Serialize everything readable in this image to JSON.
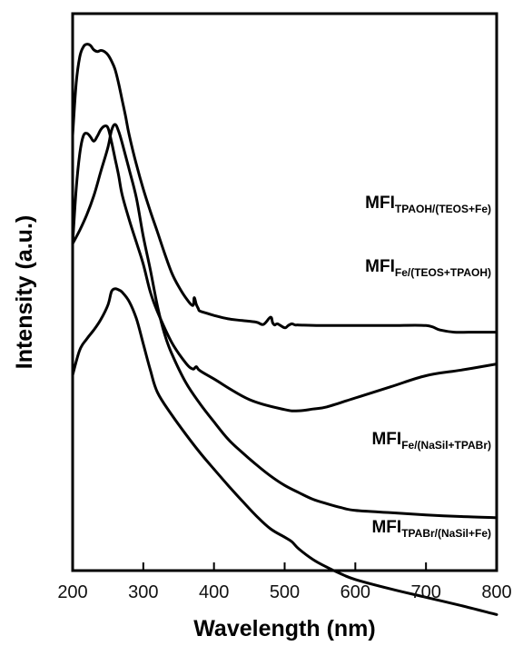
{
  "chart_data": {
    "type": "line",
    "xlabel": "Wavelength (nm)",
    "ylabel": "Intensity (a.u.)",
    "xlim": [
      200,
      800
    ],
    "xticks": [
      200,
      300,
      400,
      500,
      600,
      700,
      800
    ],
    "yticks_shown": false,
    "grid": false,
    "legend": "inline labels at right",
    "line_color": "#000000",
    "series": [
      {
        "name": "MFI",
        "subscript": "TPAOH/(TEOS+Fe)",
        "x": [
          200,
          205,
          210,
          215,
          220,
          225,
          230,
          235,
          240,
          245,
          250,
          255,
          260,
          265,
          270,
          275,
          280,
          290,
          300,
          310,
          320,
          330,
          340,
          350,
          360,
          370,
          372,
          375,
          378,
          380,
          390,
          400,
          420,
          440,
          460,
          470,
          480,
          483,
          486,
          490,
          500,
          505,
          510,
          515,
          520,
          550,
          600,
          650,
          700,
          720,
          740,
          760,
          780,
          800
        ],
        "y": [
          0.781,
          0.875,
          0.922,
          0.94,
          0.945,
          0.943,
          0.935,
          0.932,
          0.934,
          0.932,
          0.926,
          0.915,
          0.9,
          0.875,
          0.845,
          0.815,
          0.782,
          0.73,
          0.685,
          0.645,
          0.608,
          0.57,
          0.535,
          0.51,
          0.49,
          0.476,
          0.49,
          0.478,
          0.47,
          0.466,
          0.462,
          0.458,
          0.452,
          0.449,
          0.446,
          0.442,
          0.455,
          0.445,
          0.441,
          0.443,
          0.436,
          0.44,
          0.443,
          0.441,
          0.441,
          0.44,
          0.44,
          0.44,
          0.44,
          0.432,
          0.428,
          0.428,
          0.428,
          0.428
        ]
      },
      {
        "name": "MFI",
        "subscript": "Fe/(TEOS+TPAOH)",
        "x": [
          200,
          205,
          210,
          215,
          220,
          225,
          230,
          235,
          240,
          245,
          250,
          255,
          260,
          265,
          270,
          280,
          290,
          300,
          310,
          320,
          340,
          360,
          370,
          375,
          380,
          400,
          450,
          500,
          520,
          540,
          560,
          600,
          650,
          700,
          750,
          800
        ],
        "y": [
          0.587,
          0.685,
          0.748,
          0.78,
          0.785,
          0.779,
          0.771,
          0.78,
          0.792,
          0.798,
          0.795,
          0.77,
          0.74,
          0.71,
          0.675,
          0.63,
          0.59,
          0.55,
          0.5,
          0.465,
          0.41,
          0.373,
          0.362,
          0.366,
          0.359,
          0.344,
          0.307,
          0.289,
          0.287,
          0.29,
          0.294,
          0.31,
          0.33,
          0.35,
          0.36,
          0.371
        ]
      },
      {
        "name": "MFI",
        "subscript": "Fe/(NaSil+TPABr)",
        "x": [
          200,
          210,
          220,
          230,
          240,
          250,
          255,
          260,
          265,
          270,
          280,
          290,
          300,
          310,
          320,
          330,
          340,
          360,
          380,
          400,
          420,
          440,
          460,
          480,
          500,
          520,
          540,
          560,
          580,
          600,
          650,
          700,
          750,
          800
        ],
        "y": [
          0.587,
          0.611,
          0.639,
          0.673,
          0.717,
          0.76,
          0.79,
          0.801,
          0.789,
          0.768,
          0.72,
          0.67,
          0.6,
          0.54,
          0.475,
          0.425,
          0.39,
          0.338,
          0.3,
          0.267,
          0.236,
          0.212,
          0.19,
          0.17,
          0.153,
          0.14,
          0.128,
          0.12,
          0.113,
          0.108,
          0.104,
          0.1,
          0.097,
          0.095
        ]
      },
      {
        "name": "MFI",
        "subscript": "TPABr/(NaSil+Fe)",
        "x": [
          200,
          210,
          220,
          230,
          240,
          250,
          255,
          260,
          265,
          270,
          280,
          290,
          300,
          310,
          320,
          340,
          360,
          380,
          400,
          420,
          440,
          460,
          480,
          500,
          510,
          520,
          540,
          560,
          580,
          600,
          650,
          700,
          750,
          800
        ],
        "y": [
          0.351,
          0.396,
          0.416,
          0.432,
          0.451,
          0.477,
          0.501,
          0.506,
          0.504,
          0.5,
          0.483,
          0.453,
          0.407,
          0.36,
          0.32,
          0.28,
          0.245,
          0.212,
          0.182,
          0.153,
          0.125,
          0.098,
          0.075,
          0.06,
          0.052,
          0.039,
          0.02,
          0.006,
          -0.006,
          -0.016,
          -0.033,
          -0.048,
          -0.063,
          -0.079
        ]
      }
    ]
  }
}
